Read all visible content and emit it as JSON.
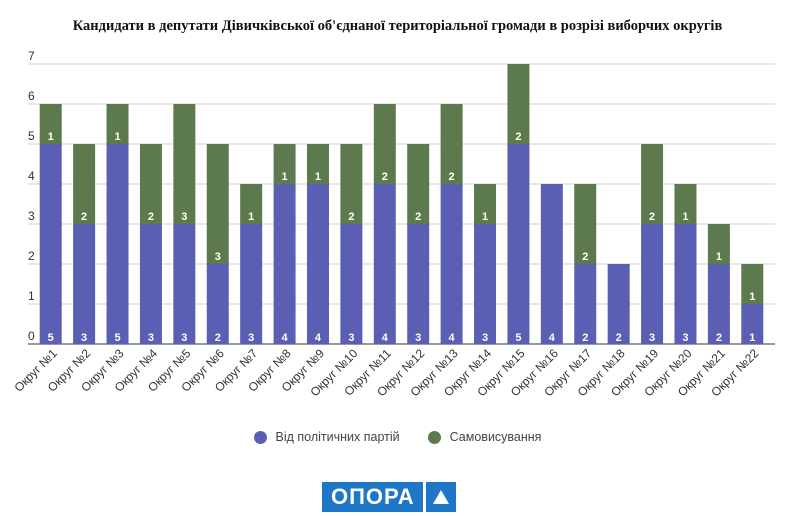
{
  "chart_data": {
    "type": "bar",
    "stacked": true,
    "title": "Кандидати в депутати Дівичківської об'єднаної територіальної громади в розрізі виборчих округів",
    "categories": [
      "Округ №1",
      "Округ №2",
      "Округ №3",
      "Округ №4",
      "Округ №5",
      "Округ №6",
      "Округ №7",
      "Округ №8",
      "Округ №9",
      "Округ №10",
      "Округ №11",
      "Округ №12",
      "Округ №13",
      "Округ №14",
      "Округ №15",
      "Округ №16",
      "Округ №17",
      "Округ №18",
      "Округ №19",
      "Округ №20",
      "Округ №21",
      "Округ №22"
    ],
    "series": [
      {
        "name": "Від політичних партій",
        "color": "#5b5fb4",
        "values": [
          5,
          3,
          5,
          3,
          3,
          2,
          3,
          4,
          4,
          3,
          4,
          3,
          4,
          3,
          5,
          4,
          2,
          2,
          3,
          3,
          2,
          1
        ]
      },
      {
        "name": "Самовисування",
        "color": "#5d7a4e",
        "values": [
          1,
          2,
          1,
          2,
          3,
          3,
          1,
          1,
          1,
          2,
          2,
          2,
          2,
          1,
          2,
          0,
          2,
          0,
          2,
          1,
          1,
          1
        ]
      }
    ],
    "ylim": [
      0,
      7
    ],
    "yticks": [
      0,
      1,
      2,
      3,
      4,
      5,
      6,
      7
    ],
    "grid": true,
    "legend_position": "bottom",
    "xlabel": "",
    "ylabel": ""
  },
  "legend": {
    "party_label": "Від політичних партій",
    "party_color": "#5b5fb4",
    "self_label": "Самовисування",
    "self_color": "#5d7a4e"
  },
  "logo": {
    "text": "ОПОРА"
  }
}
